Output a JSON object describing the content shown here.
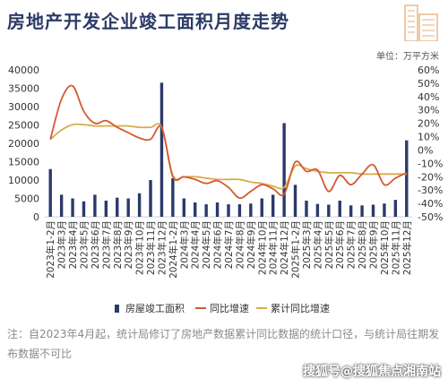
{
  "header": {
    "title": "房地产开发企业竣工面积月度走势",
    "unit": "单位：万平方米"
  },
  "footer": {
    "note": "注：自2023年4月起，统计局修订了房地产数据累计同比数据的统计口径，与统计局往期发布数据不可比",
    "watermark": "搜狐号@搜狐焦点湘南站"
  },
  "colors": {
    "bar": "#2b3a6b",
    "line_mom": "#d35a34",
    "line_cum": "#d9ab4a",
    "title": "#2b3a67"
  },
  "chart_data": {
    "type": "bar",
    "categories": [
      "2023年1-2月",
      "2023年3月",
      "2023年4月",
      "2023年5月",
      "2023年6月",
      "2023年7月",
      "2023年8月",
      "2023年9月",
      "2023年10月",
      "2023年11月",
      "2023年12月",
      "2024年1-2月",
      "2024年3月",
      "2024年4月",
      "2024年5月",
      "2024年6月",
      "2024年7月",
      "2024年8月",
      "2024年9月",
      "2024年10月",
      "2024年11月",
      "2024年12月",
      "2025年1-2月",
      "2025年3月",
      "2025年4月",
      "2025年5月",
      "2025年6月",
      "2025年7月",
      "2025年8月",
      "2025年9月",
      "2025年10月",
      "2025年11月",
      "2025年12月"
    ],
    "series": [
      {
        "name": "房屋竣工面积",
        "type": "bar",
        "axis": "left",
        "values": [
          13000,
          6000,
          5000,
          4200,
          6000,
          4400,
          5200,
          5000,
          6400,
          10000,
          36500,
          10500,
          5000,
          3900,
          3400,
          3900,
          3400,
          3400,
          3600,
          5000,
          6000,
          25500,
          8700,
          4400,
          3500,
          3300,
          4400,
          3100,
          3100,
          3300,
          3600,
          4600,
          20800
        ]
      },
      {
        "name": "同比增速",
        "type": "line",
        "axis": "right",
        "values": [
          8,
          38,
          48,
          29,
          20,
          22,
          17,
          13,
          9,
          8,
          17,
          -20,
          -20,
          -22,
          -25,
          -23,
          -28,
          -36,
          -31,
          -26,
          -29,
          -33,
          -9,
          -16,
          -15,
          -31,
          -19,
          -26,
          -18,
          -11,
          -26,
          -21,
          -17
        ]
      },
      {
        "name": "累计同比增速",
        "type": "line",
        "axis": "right",
        "values": [
          8,
          15,
          19,
          19,
          18,
          18,
          18,
          18,
          17,
          17,
          17,
          -19,
          -20,
          -20,
          -21,
          -22,
          -22,
          -22,
          -24,
          -25,
          -27,
          -28,
          -12,
          -14,
          -16,
          -17,
          -17,
          -17,
          -18,
          -18,
          -18,
          -18,
          -18
        ]
      }
    ],
    "y_left": {
      "min": 0,
      "max": 40000,
      "ticks": [
        0,
        5000,
        10000,
        15000,
        20000,
        25000,
        30000,
        35000,
        40000
      ]
    },
    "y_right": {
      "min": -50,
      "max": 60,
      "ticks": [
        -50,
        -40,
        -30,
        -20,
        -10,
        0,
        10,
        20,
        30,
        40,
        50,
        60
      ],
      "format": "percent"
    },
    "grid": false,
    "legend_position": "bottom"
  }
}
